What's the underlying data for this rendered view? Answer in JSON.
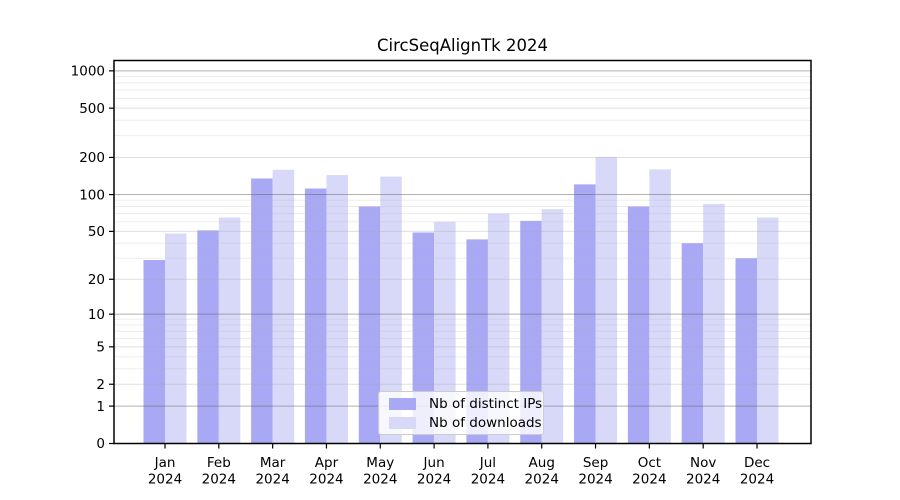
{
  "chart_data": {
    "type": "bar",
    "title": "CircSeqAlignTk 2024",
    "categories": [
      "Jan",
      "Feb",
      "Mar",
      "Apr",
      "May",
      "Jun",
      "Jul",
      "Aug",
      "Sep",
      "Oct",
      "Nov",
      "Dec"
    ],
    "category_year": "2024",
    "series": [
      {
        "name": "Nb of distinct IPs",
        "color": "#a8a8f5",
        "values": [
          29,
          51,
          135,
          112,
          80,
          49,
          43,
          61,
          121,
          80,
          40,
          30
        ]
      },
      {
        "name": "Nb of downloads",
        "color": "#d8d8f8",
        "values": [
          48,
          65,
          159,
          144,
          140,
          60,
          70,
          76,
          202,
          160,
          84,
          65
        ]
      }
    ],
    "y_axis": {
      "scale": "log10(value+1)",
      "tick_values": [
        0,
        1,
        2,
        5,
        10,
        20,
        50,
        100,
        200,
        500,
        1000
      ],
      "major_grid_values": [
        1,
        10,
        100,
        1000
      ],
      "mid_grid_values": [
        2,
        5,
        20,
        50,
        200,
        500
      ],
      "minor_grid_multipliers": [
        3,
        4,
        6,
        7,
        8,
        9
      ],
      "minor_grid_bases": [
        1,
        10,
        100
      ],
      "ylim_max": 1185
    },
    "legend": {
      "position": "lower center"
    },
    "grid": true
  },
  "colors": {
    "background": "#ffffff",
    "axis": "#000000",
    "tick_label": "#000000",
    "grid_major": "rgba(100,100,100,0.50)",
    "grid_mid": "rgba(170,170,170,0.38)",
    "grid_minor": "rgba(185,185,185,0.25)"
  }
}
